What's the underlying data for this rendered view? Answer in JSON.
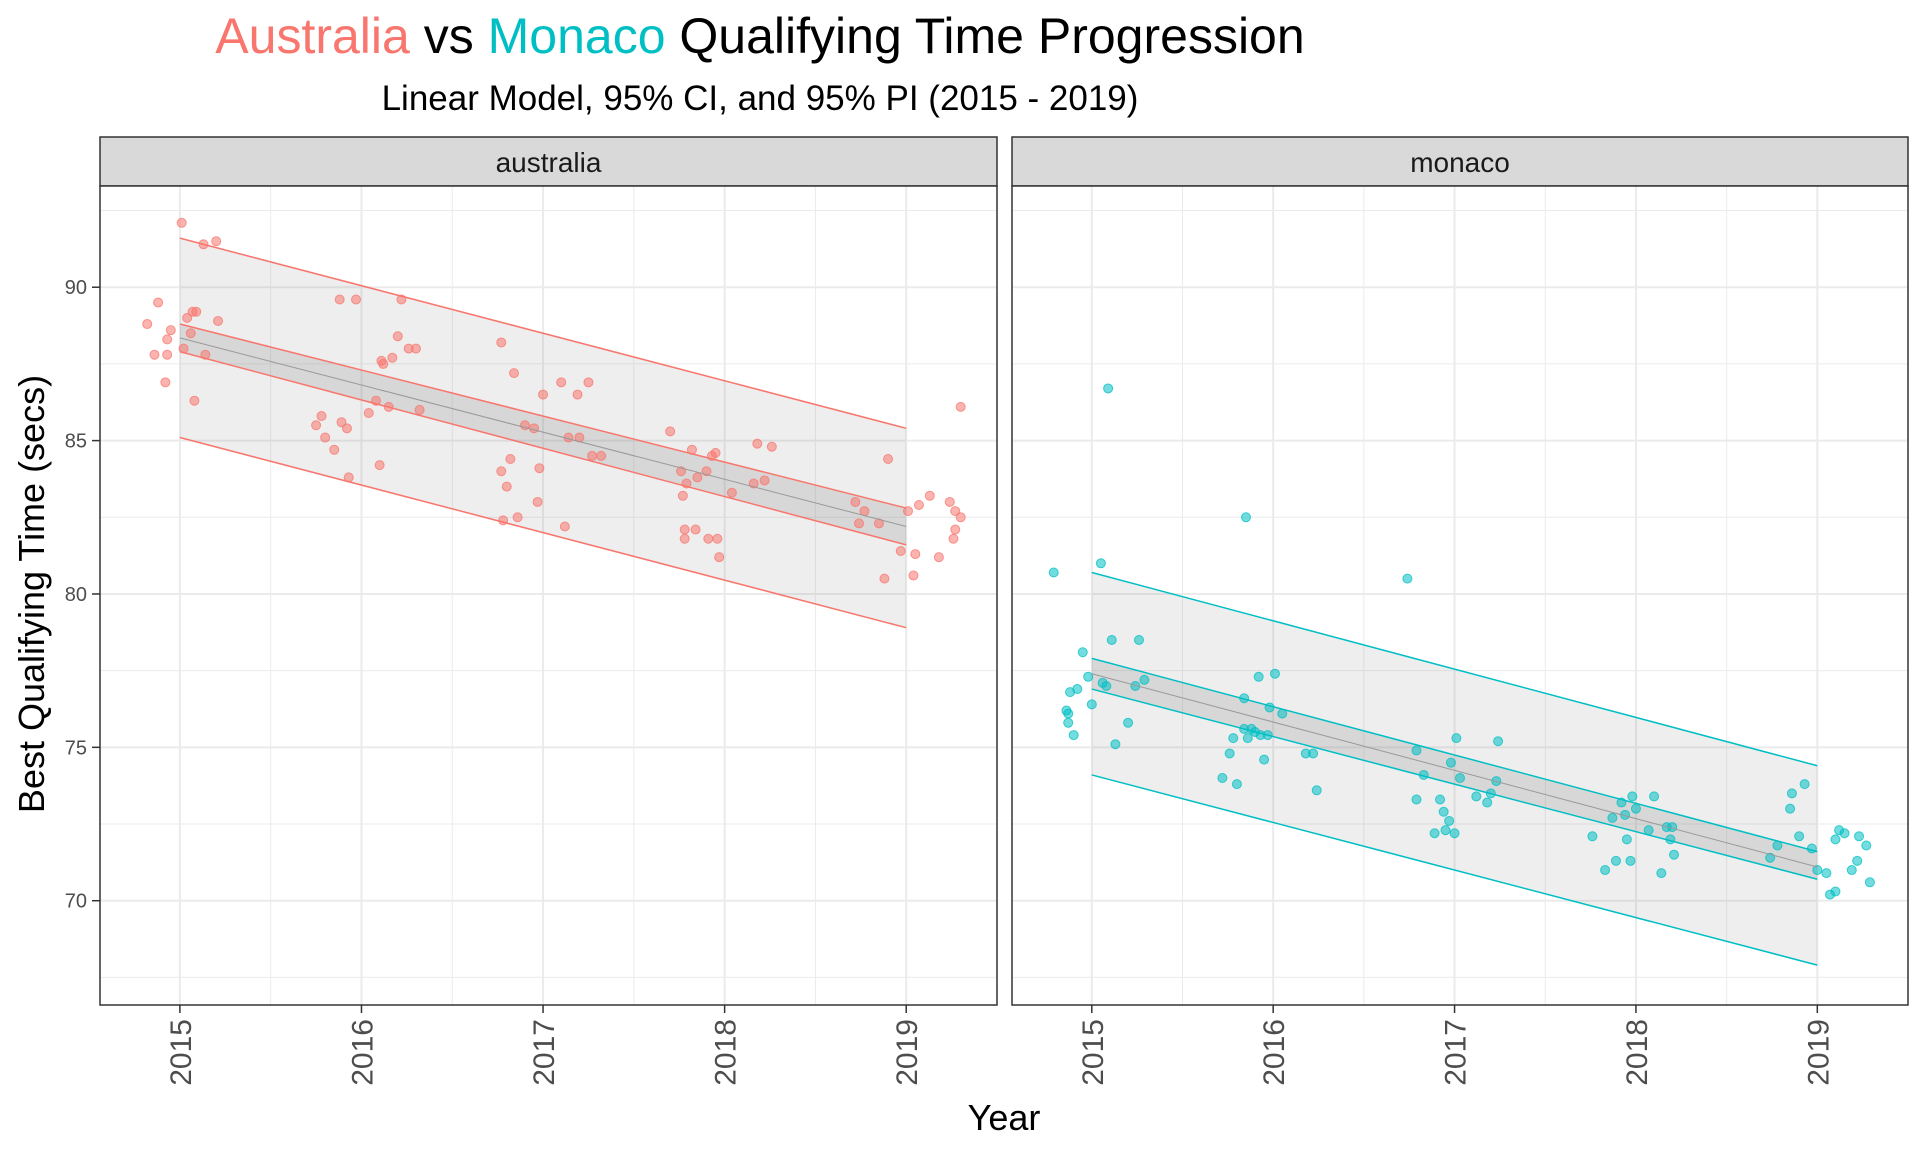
{
  "title": {
    "part1": "Australia",
    "part2": " vs ",
    "part3": "Monaco",
    "part4": " Qualifying Time Progression"
  },
  "subtitle": "Linear Model, 95% CI, and 95% PI (2015 - 2019)",
  "colors": {
    "australia": "#F8766D",
    "monaco": "#00BFC4",
    "band_fill": "#d9d9d9",
    "grid": "#ebebeb",
    "strip_bg": "#d9d9d9",
    "fit_line": "#999999"
  },
  "chart_data": {
    "type": "scatter",
    "xlabel": "Year",
    "ylabel": "Best Qualifying Time (secs)",
    "xlim": [
      2014.56,
      2019.5
    ],
    "ylim": [
      66.6,
      93.3
    ],
    "x_ticks": [
      "2015",
      "2016",
      "2017",
      "2018",
      "2019"
    ],
    "y_ticks": [
      "70",
      "75",
      "80",
      "85",
      "90"
    ],
    "grid": true,
    "legend": "none",
    "facets": [
      {
        "name": "australia",
        "color": "#F8766D",
        "fit": {
          "x0": 2015,
          "y0": 88.35,
          "x1": 2019,
          "y1": 82.2
        },
        "ci": {
          "x0": 2015,
          "upper0": 88.8,
          "lower0": 87.9,
          "x1": 2019,
          "upper1": 82.8,
          "lower1": 81.6
        },
        "pi": {
          "x0": 2015,
          "upper0": 91.6,
          "lower0": 85.1,
          "x1": 2019,
          "upper1": 85.4,
          "lower1": 78.9
        },
        "points": [
          [
            2014.82,
            88.8
          ],
          [
            2014.86,
            87.8
          ],
          [
            2014.88,
            89.5
          ],
          [
            2014.92,
            86.9
          ],
          [
            2014.93,
            88.3
          ],
          [
            2014.93,
            87.8
          ],
          [
            2014.95,
            88.6
          ],
          [
            2015.01,
            92.1
          ],
          [
            2015.02,
            88.0
          ],
          [
            2015.04,
            89.0
          ],
          [
            2015.06,
            88.5
          ],
          [
            2015.07,
            89.2
          ],
          [
            2015.08,
            86.3
          ],
          [
            2015.09,
            89.2
          ],
          [
            2015.13,
            91.4
          ],
          [
            2015.14,
            87.8
          ],
          [
            2015.2,
            91.5
          ],
          [
            2015.21,
            88.9
          ],
          [
            2015.75,
            85.5
          ],
          [
            2015.78,
            85.8
          ],
          [
            2015.8,
            85.1
          ],
          [
            2015.85,
            84.7
          ],
          [
            2015.88,
            89.6
          ],
          [
            2015.89,
            85.6
          ],
          [
            2015.92,
            85.4
          ],
          [
            2015.93,
            83.8
          ],
          [
            2015.97,
            89.6
          ],
          [
            2016.04,
            85.9
          ],
          [
            2016.08,
            86.3
          ],
          [
            2016.1,
            84.2
          ],
          [
            2016.11,
            87.6
          ],
          [
            2016.12,
            87.5
          ],
          [
            2016.15,
            86.1
          ],
          [
            2016.17,
            87.7
          ],
          [
            2016.2,
            88.4
          ],
          [
            2016.22,
            89.6
          ],
          [
            2016.26,
            88.0
          ],
          [
            2016.3,
            88.0
          ],
          [
            2016.32,
            86.0
          ],
          [
            2016.77,
            88.2
          ],
          [
            2016.77,
            84.0
          ],
          [
            2016.78,
            82.4
          ],
          [
            2016.8,
            83.5
          ],
          [
            2016.82,
            84.4
          ],
          [
            2016.84,
            87.2
          ],
          [
            2016.86,
            82.5
          ],
          [
            2016.9,
            85.5
          ],
          [
            2016.95,
            85.4
          ],
          [
            2016.97,
            83.0
          ],
          [
            2016.98,
            84.1
          ],
          [
            2017.0,
            86.5
          ],
          [
            2017.1,
            86.9
          ],
          [
            2017.12,
            82.2
          ],
          [
            2017.14,
            85.1
          ],
          [
            2017.19,
            86.5
          ],
          [
            2017.2,
            85.1
          ],
          [
            2017.25,
            86.9
          ],
          [
            2017.27,
            84.5
          ],
          [
            2017.32,
            84.5
          ],
          [
            2017.7,
            85.3
          ],
          [
            2017.76,
            84.0
          ],
          [
            2017.77,
            83.2
          ],
          [
            2017.78,
            82.1
          ],
          [
            2017.78,
            81.8
          ],
          [
            2017.79,
            83.6
          ],
          [
            2017.82,
            84.7
          ],
          [
            2017.84,
            82.1
          ],
          [
            2017.85,
            83.8
          ],
          [
            2017.9,
            84.0
          ],
          [
            2017.91,
            81.8
          ],
          [
            2017.93,
            84.5
          ],
          [
            2017.95,
            84.6
          ],
          [
            2017.96,
            81.8
          ],
          [
            2017.97,
            81.2
          ],
          [
            2018.04,
            83.3
          ],
          [
            2018.16,
            83.6
          ],
          [
            2018.18,
            84.9
          ],
          [
            2018.22,
            83.7
          ],
          [
            2018.26,
            84.8
          ],
          [
            2018.72,
            83.0
          ],
          [
            2018.74,
            82.3
          ],
          [
            2018.77,
            82.7
          ],
          [
            2018.85,
            82.3
          ],
          [
            2018.88,
            80.5
          ],
          [
            2018.9,
            84.4
          ],
          [
            2018.97,
            81.4
          ],
          [
            2019.01,
            82.7
          ],
          [
            2019.04,
            80.6
          ],
          [
            2019.05,
            81.3
          ],
          [
            2019.07,
            82.9
          ],
          [
            2019.13,
            83.2
          ],
          [
            2019.18,
            81.2
          ],
          [
            2019.24,
            83.0
          ],
          [
            2019.26,
            81.8
          ],
          [
            2019.27,
            82.1
          ],
          [
            2019.27,
            82.7
          ],
          [
            2019.3,
            82.5
          ],
          [
            2019.3,
            86.1
          ]
        ]
      },
      {
        "name": "monaco",
        "color": "#00BFC4",
        "fit": {
          "x0": 2015,
          "y0": 77.4,
          "x1": 2019,
          "y1": 71.1
        },
        "ci": {
          "x0": 2015,
          "upper0": 77.9,
          "lower0": 76.9,
          "x1": 2019,
          "upper1": 71.6,
          "lower1": 70.7
        },
        "pi": {
          "x0": 2015,
          "upper0": 80.7,
          "lower0": 74.1,
          "x1": 2019,
          "upper1": 74.4,
          "lower1": 67.9
        },
        "points": [
          [
            2014.79,
            80.7
          ],
          [
            2014.86,
            76.2
          ],
          [
            2014.87,
            76.1
          ],
          [
            2014.87,
            75.8
          ],
          [
            2014.88,
            76.8
          ],
          [
            2014.9,
            75.4
          ],
          [
            2014.92,
            76.9
          ],
          [
            2014.95,
            78.1
          ],
          [
            2014.98,
            77.3
          ],
          [
            2015.0,
            76.4
          ],
          [
            2015.05,
            81.0
          ],
          [
            2015.06,
            77.1
          ],
          [
            2015.08,
            77.0
          ],
          [
            2015.09,
            86.7
          ],
          [
            2015.11,
            78.5
          ],
          [
            2015.13,
            75.1
          ],
          [
            2015.2,
            75.8
          ],
          [
            2015.24,
            77.0
          ],
          [
            2015.26,
            78.5
          ],
          [
            2015.29,
            77.2
          ],
          [
            2015.72,
            74.0
          ],
          [
            2015.76,
            74.8
          ],
          [
            2015.78,
            75.3
          ],
          [
            2015.8,
            73.8
          ],
          [
            2015.84,
            76.6
          ],
          [
            2015.84,
            75.6
          ],
          [
            2015.85,
            82.5
          ],
          [
            2015.86,
            75.3
          ],
          [
            2015.88,
            75.6
          ],
          [
            2015.9,
            75.5
          ],
          [
            2015.92,
            77.3
          ],
          [
            2015.93,
            75.4
          ],
          [
            2015.95,
            74.6
          ],
          [
            2015.97,
            75.4
          ],
          [
            2015.98,
            76.3
          ],
          [
            2016.01,
            77.4
          ],
          [
            2016.05,
            76.1
          ],
          [
            2016.18,
            74.8
          ],
          [
            2016.22,
            74.8
          ],
          [
            2016.24,
            73.6
          ],
          [
            2016.74,
            80.5
          ],
          [
            2016.79,
            73.3
          ],
          [
            2016.79,
            74.9
          ],
          [
            2016.83,
            74.1
          ],
          [
            2016.89,
            72.2
          ],
          [
            2016.92,
            73.3
          ],
          [
            2016.94,
            72.9
          ],
          [
            2016.95,
            72.3
          ],
          [
            2016.97,
            72.6
          ],
          [
            2016.98,
            74.5
          ],
          [
            2017.0,
            72.2
          ],
          [
            2017.01,
            75.3
          ],
          [
            2017.03,
            74.0
          ],
          [
            2017.12,
            73.4
          ],
          [
            2017.18,
            73.2
          ],
          [
            2017.2,
            73.5
          ],
          [
            2017.23,
            73.9
          ],
          [
            2017.24,
            75.2
          ],
          [
            2017.76,
            72.1
          ],
          [
            2017.83,
            71.0
          ],
          [
            2017.87,
            72.7
          ],
          [
            2017.89,
            71.3
          ],
          [
            2017.92,
            73.2
          ],
          [
            2017.94,
            72.8
          ],
          [
            2017.95,
            72.0
          ],
          [
            2017.97,
            71.3
          ],
          [
            2017.98,
            73.4
          ],
          [
            2018.0,
            73.0
          ],
          [
            2018.07,
            72.3
          ],
          [
            2018.1,
            73.4
          ],
          [
            2018.14,
            70.9
          ],
          [
            2018.17,
            72.4
          ],
          [
            2018.19,
            72.0
          ],
          [
            2018.2,
            72.4
          ],
          [
            2018.21,
            71.5
          ],
          [
            2018.74,
            71.4
          ],
          [
            2018.78,
            71.8
          ],
          [
            2018.85,
            73.0
          ],
          [
            2018.86,
            73.5
          ],
          [
            2018.9,
            72.1
          ],
          [
            2018.93,
            73.8
          ],
          [
            2018.97,
            71.7
          ],
          [
            2019.0,
            71.0
          ],
          [
            2019.05,
            70.9
          ],
          [
            2019.07,
            70.2
          ],
          [
            2019.1,
            70.3
          ],
          [
            2019.1,
            72.0
          ],
          [
            2019.12,
            72.3
          ],
          [
            2019.15,
            72.2
          ],
          [
            2019.19,
            71.0
          ],
          [
            2019.22,
            71.3
          ],
          [
            2019.23,
            72.1
          ],
          [
            2019.27,
            71.8
          ],
          [
            2019.29,
            70.6
          ]
        ]
      }
    ]
  }
}
